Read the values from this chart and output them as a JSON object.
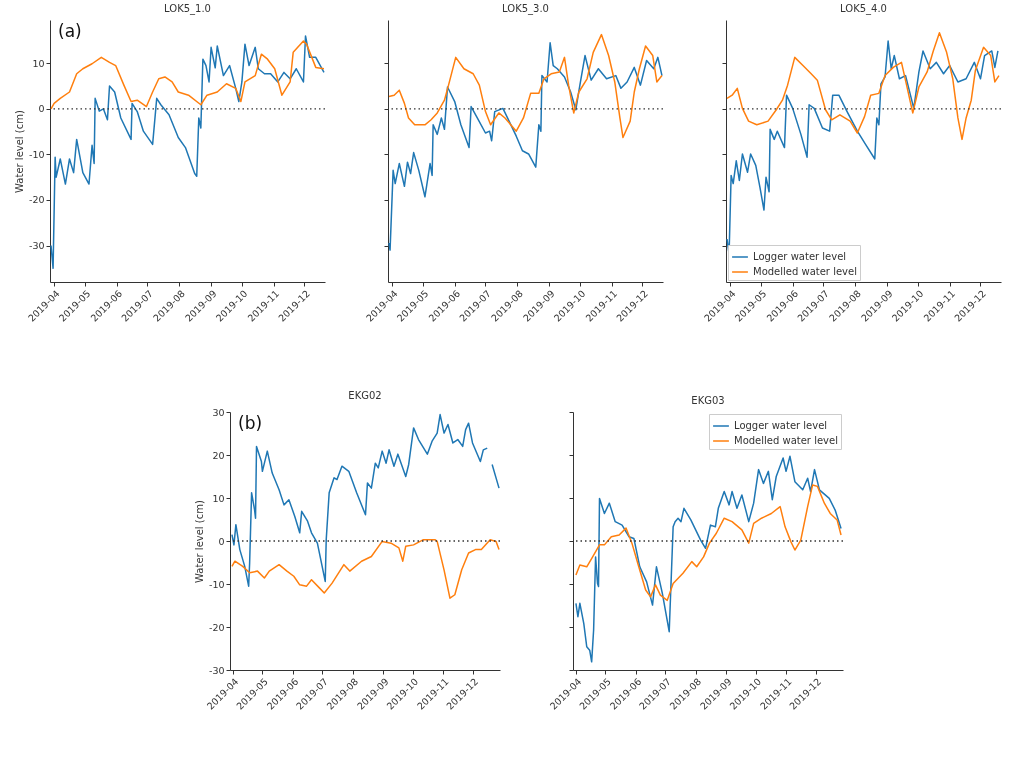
{
  "chart_data": [
    {
      "type": "line",
      "title": "LOK5_1.0",
      "ylabel": "Water level (cm)",
      "annotations": [
        "(a)"
      ],
      "legend": false,
      "xlim": [
        "2019-03-28",
        "2019-12-21"
      ],
      "xticks": [
        "2019-04",
        "2019-05",
        "2019-06",
        "2019-07",
        "2019-08",
        "2019-09",
        "2019-10",
        "2019-11",
        "2019-12"
      ],
      "ylim": [
        -38,
        19.5
      ],
      "yticks": [
        -30,
        -20,
        -10,
        0,
        10
      ],
      "ref_lines": [
        {
          "axis": "y",
          "value": 0,
          "line_style": "dotted",
          "color": "#333333"
        }
      ],
      "series": [
        {
          "color": "#1f77b4",
          "x": [
            "2019-03-29",
            "2019-03-31",
            "2019-04-02",
            "2019-04-03",
            "2019-04-07",
            "2019-04-12",
            "2019-04-16",
            "2019-04-20",
            "2019-04-23",
            "2019-04-29",
            "2019-05-05",
            "2019-05-08",
            "2019-05-10",
            "2019-05-11",
            "2019-05-15",
            "2019-05-19",
            "2019-05-23",
            "2019-05-25",
            "2019-05-30",
            "2019-06-05",
            "2019-06-15",
            "2019-06-16",
            "2019-06-21",
            "2019-06-27",
            "2019-07-06",
            "2019-07-10",
            "2019-07-14",
            "2019-07-22",
            "2019-07-31",
            "2019-08-07",
            "2019-08-16",
            "2019-08-18",
            "2019-08-20",
            "2019-08-22",
            "2019-08-24",
            "2019-08-27",
            "2019-08-30",
            "2019-09-01",
            "2019-09-05",
            "2019-09-07",
            "2019-09-13",
            "2019-09-19",
            "2019-09-25",
            "2019-09-28",
            "2019-10-01",
            "2019-10-04",
            "2019-10-08",
            "2019-10-14",
            "2019-10-17",
            "2019-10-23",
            "2019-10-29",
            "2019-11-05",
            "2019-11-11",
            "2019-11-17",
            "2019-11-23",
            "2019-11-30",
            "2019-12-02",
            "2019-12-06",
            "2019-12-12",
            "2019-12-20"
          ],
          "values": [
            -30,
            -35,
            -10.6,
            -15,
            -11,
            -16.5,
            -11,
            -14,
            -6.7,
            -14,
            -16.5,
            -8,
            -12,
            2.3,
            -0.5,
            0,
            -2.4,
            5,
            3.7,
            -2,
            -6.7,
            1.2,
            -0.6,
            -4.9,
            -7.8,
            2.3,
            0.9,
            -1.3,
            -6.3,
            -8.5,
            -14.2,
            -14.8,
            -2,
            -4.2,
            10.9,
            9.5,
            5.9,
            13.5,
            9,
            13.8,
            7.3,
            9.5,
            4.5,
            1.6,
            5.9,
            14.2,
            9.5,
            13.5,
            8.8,
            7.7,
            7.7,
            5.9,
            8,
            6.6,
            8.8,
            5.9,
            16,
            11.3,
            11.3,
            8
          ]
        },
        {
          "color": "#ff7f0e",
          "x": [
            "2019-03-29",
            "2019-04-01",
            "2019-04-07",
            "2019-04-16",
            "2019-04-23",
            "2019-04-29",
            "2019-05-08",
            "2019-05-17",
            "2019-05-25",
            "2019-05-31",
            "2019-06-08",
            "2019-06-15",
            "2019-06-21",
            "2019-06-30",
            "2019-07-06",
            "2019-07-12",
            "2019-07-18",
            "2019-07-25",
            "2019-07-31",
            "2019-08-10",
            "2019-08-22",
            "2019-08-28",
            "2019-09-07",
            "2019-09-16",
            "2019-09-25",
            "2019-09-30",
            "2019-10-04",
            "2019-10-14",
            "2019-10-20",
            "2019-10-26",
            "2019-11-02",
            "2019-11-09",
            "2019-11-17",
            "2019-11-20",
            "2019-11-30",
            "2019-12-03",
            "2019-12-12",
            "2019-12-20"
          ],
          "values": [
            0,
            1.2,
            2.3,
            3.7,
            7.7,
            8.8,
            9.9,
            11.3,
            10.2,
            9.5,
            5.2,
            1.6,
            1.9,
            0.5,
            3.7,
            6.6,
            7,
            5.9,
            3.7,
            3,
            0.9,
            3,
            3.7,
            5.5,
            4.5,
            1.6,
            5.9,
            7.3,
            12,
            10.9,
            8.8,
            3,
            5.9,
            12.4,
            14.9,
            14.2,
            9.1,
            8.8
          ]
        }
      ]
    },
    {
      "type": "line",
      "title": "LOK5_3.0",
      "tick_labels": "x",
      "legend": false,
      "xlim": [
        "2019-03-28",
        "2019-12-21"
      ],
      "xticks": [
        "2019-04",
        "2019-05",
        "2019-06",
        "2019-07",
        "2019-08",
        "2019-09",
        "2019-10",
        "2019-11",
        "2019-12"
      ],
      "ylim": [
        -38,
        19.5
      ],
      "yticks": [
        -30,
        -20,
        -10,
        0,
        10
      ],
      "ref_lines": [
        {
          "axis": "y",
          "value": 0,
          "line_style": "dotted",
          "color": "#333333"
        }
      ],
      "series": [
        {
          "color": "#1f77b4",
          "x": [
            "2019-03-29",
            "2019-03-30",
            "2019-04-02",
            "2019-04-04",
            "2019-04-08",
            "2019-04-13",
            "2019-04-16",
            "2019-04-19",
            "2019-04-22",
            "2019-04-27",
            "2019-05-03",
            "2019-05-08",
            "2019-05-10",
            "2019-05-11",
            "2019-05-15",
            "2019-05-19",
            "2019-05-22",
            "2019-05-25",
            "2019-06-01",
            "2019-06-07",
            "2019-06-15",
            "2019-06-17",
            "2019-06-23",
            "2019-07-01",
            "2019-07-05",
            "2019-07-07",
            "2019-07-10",
            "2019-07-18",
            "2019-07-24",
            "2019-07-31",
            "2019-08-06",
            "2019-08-12",
            "2019-08-19",
            "2019-08-22",
            "2019-08-24",
            "2019-08-25",
            "2019-08-30",
            "2019-09-02",
            "2019-09-05",
            "2019-09-09",
            "2019-09-16",
            "2019-09-22",
            "2019-09-27",
            "2019-10-01",
            "2019-10-06",
            "2019-10-12",
            "2019-10-19",
            "2019-10-27",
            "2019-11-05",
            "2019-11-10",
            "2019-11-16",
            "2019-11-23",
            "2019-11-29",
            "2019-12-05",
            "2019-12-12",
            "2019-12-16",
            "2019-12-20"
          ],
          "values": [
            -29.4,
            -31,
            -13.5,
            -16.4,
            -12,
            -17,
            -11.7,
            -14.2,
            -9.6,
            -13.5,
            -19.3,
            -12,
            -14.6,
            -3.5,
            -5.6,
            -2,
            -4.5,
            4.8,
            1.6,
            -3.5,
            -8.5,
            0.5,
            -2,
            -5.3,
            -4.9,
            -7,
            -0.6,
            0.1,
            -2.7,
            -6,
            -9.2,
            -9.9,
            -12.8,
            -3.5,
            -4.9,
            7.3,
            5.9,
            14.5,
            9.5,
            8.8,
            7,
            3.7,
            -0.2,
            5.2,
            11.7,
            6.3,
            8.8,
            6.6,
            7.3,
            4.5,
            5.9,
            9.1,
            5.2,
            10.6,
            8.8,
            11.3,
            7.3
          ]
        },
        {
          "color": "#ff7f0e",
          "x": [
            "2019-03-29",
            "2019-04-03",
            "2019-04-08",
            "2019-04-13",
            "2019-04-17",
            "2019-04-23",
            "2019-05-03",
            "2019-05-09",
            "2019-05-15",
            "2019-05-22",
            "2019-05-26",
            "2019-06-02",
            "2019-06-10",
            "2019-06-19",
            "2019-06-25",
            "2019-07-01",
            "2019-07-06",
            "2019-07-14",
            "2019-07-20",
            "2019-07-31",
            "2019-08-07",
            "2019-08-14",
            "2019-08-22",
            "2019-08-27",
            "2019-09-03",
            "2019-09-11",
            "2019-09-16",
            "2019-09-20",
            "2019-09-25",
            "2019-09-30",
            "2019-10-08",
            "2019-10-14",
            "2019-10-22",
            "2019-10-29",
            "2019-11-04",
            "2019-11-09",
            "2019-11-12",
            "2019-11-19",
            "2019-11-23",
            "2019-11-28",
            "2019-12-04",
            "2019-12-11",
            "2019-12-15",
            "2019-12-20"
          ],
          "values": [
            2.7,
            3,
            4.1,
            1.2,
            -2,
            -3.5,
            -3.5,
            -2.4,
            -0.9,
            1.9,
            5.2,
            11.3,
            8.8,
            7.7,
            5.2,
            -0.6,
            -3.5,
            -0.9,
            -2,
            -4.9,
            -2,
            3.4,
            3.4,
            6.6,
            7.7,
            8.1,
            11.3,
            5.2,
            -0.9,
            3.7,
            6.6,
            12.4,
            16.3,
            11.7,
            5.9,
            -2,
            -6.3,
            -2.7,
            3.7,
            8.8,
            13.8,
            11.7,
            5.9,
            7.3
          ]
        }
      ]
    },
    {
      "type": "line",
      "title": "LOK5_4.0",
      "tick_labels": "x",
      "legend": "bottom left",
      "xlim": [
        "2019-03-28",
        "2019-12-21"
      ],
      "xticks": [
        "2019-04",
        "2019-05",
        "2019-06",
        "2019-07",
        "2019-08",
        "2019-09",
        "2019-10",
        "2019-11",
        "2019-12"
      ],
      "ylim": [
        -38,
        19.5
      ],
      "yticks": [
        -30,
        -20,
        -10,
        0,
        10
      ],
      "ref_lines": [
        {
          "axis": "y",
          "value": 0,
          "line_style": "dotted",
          "color": "#333333"
        }
      ],
      "series": [
        {
          "name": "Logger water level",
          "color": "#1f77b4",
          "x": [
            "2019-03-29",
            "2019-03-31",
            "2019-04-02",
            "2019-04-04",
            "2019-04-07",
            "2019-04-10",
            "2019-04-13",
            "2019-04-18",
            "2019-04-21",
            "2019-04-26",
            "2019-04-30",
            "2019-05-04",
            "2019-05-06",
            "2019-05-09",
            "2019-05-10",
            "2019-05-14",
            "2019-05-17",
            "2019-05-24",
            "2019-05-26",
            "2019-06-01",
            "2019-06-09",
            "2019-06-15",
            "2019-06-17",
            "2019-06-22",
            "2019-06-30",
            "2019-07-07",
            "2019-07-10",
            "2019-07-16",
            "2019-07-24",
            "2019-08-03",
            "2019-08-11",
            "2019-08-20",
            "2019-08-22",
            "2019-08-24",
            "2019-08-26",
            "2019-08-30",
            "2019-09-02",
            "2019-09-05",
            "2019-09-08",
            "2019-09-13",
            "2019-09-19",
            "2019-09-27",
            "2019-10-02",
            "2019-10-06",
            "2019-10-13",
            "2019-10-19",
            "2019-10-26",
            "2019-11-01",
            "2019-11-09",
            "2019-11-17",
            "2019-11-25",
            "2019-12-01",
            "2019-12-05",
            "2019-12-12",
            "2019-12-15",
            "2019-12-18"
          ],
          "values": [
            -28.6,
            -31.9,
            -14.6,
            -16.4,
            -11.4,
            -15.7,
            -9.9,
            -13.9,
            -9.9,
            -12.4,
            -17.1,
            -22.2,
            -15,
            -18.2,
            -4.5,
            -6.7,
            -4.9,
            -8.5,
            3,
            0.1,
            -5.6,
            -10.6,
            0.9,
            0.1,
            -4.2,
            -4.9,
            3,
            3,
            -0.6,
            -4.9,
            -7.8,
            -11,
            -2,
            -3.5,
            5.5,
            7,
            14.9,
            8.8,
            11.7,
            6.6,
            7.3,
            0.1,
            8.1,
            12.7,
            8.8,
            10.2,
            7.7,
            9.5,
            5.9,
            6.6,
            10.2,
            6.6,
            11.7,
            12.7,
            9.1,
            12.7
          ]
        },
        {
          "name": "Modelled water level",
          "color": "#ff7f0e",
          "x": [
            "2019-03-29",
            "2019-04-03",
            "2019-04-08",
            "2019-04-13",
            "2019-04-19",
            "2019-04-27",
            "2019-05-08",
            "2019-05-16",
            "2019-05-22",
            "2019-05-27",
            "2019-06-03",
            "2019-06-11",
            "2019-06-19",
            "2019-06-25",
            "2019-07-03",
            "2019-07-09",
            "2019-07-17",
            "2019-07-27",
            "2019-08-03",
            "2019-08-10",
            "2019-08-16",
            "2019-08-24",
            "2019-08-30",
            "2019-09-07",
            "2019-09-15",
            "2019-09-20",
            "2019-09-26",
            "2019-10-02",
            "2019-10-10",
            "2019-10-16",
            "2019-10-22",
            "2019-10-29",
            "2019-11-04",
            "2019-11-09",
            "2019-11-13",
            "2019-11-17",
            "2019-11-22",
            "2019-11-26",
            "2019-12-04",
            "2019-12-11",
            "2019-12-15",
            "2019-12-19"
          ],
          "values": [
            2.3,
            3,
            4.5,
            0.1,
            -2.7,
            -3.5,
            -2.7,
            -0.2,
            1.9,
            5.2,
            11.3,
            9.5,
            7.7,
            6.3,
            -0.2,
            -2.4,
            -1.3,
            -2.7,
            -5.3,
            -1.7,
            3,
            3.4,
            7.3,
            9.1,
            10.2,
            5.2,
            -0.9,
            4.8,
            8.1,
            12.7,
            16.7,
            12.4,
            6.6,
            -2,
            -6.7,
            -2,
            1.9,
            8.4,
            13.5,
            11.7,
            5.9,
            7.3
          ]
        }
      ]
    },
    {
      "type": "line",
      "title": "EKG02",
      "ylabel": "Water level (cm)",
      "annotations": [
        "(b)"
      ],
      "legend": false,
      "xlim": [
        "2019-03-29",
        "2019-12-29"
      ],
      "xticks": [
        "2019-04",
        "2019-05",
        "2019-06",
        "2019-07",
        "2019-08",
        "2019-09",
        "2019-10",
        "2019-11",
        "2019-12"
      ],
      "ylim": [
        -30,
        30
      ],
      "yticks": [
        -30,
        -20,
        -10,
        0,
        10,
        20,
        30
      ],
      "ref_lines": [
        {
          "axis": "y",
          "value": 0,
          "line_style": "dotted",
          "color": "#333333"
        }
      ],
      "series": [
        {
          "color": "#1f77b4",
          "x": [
            "2019-03-31",
            "2019-04-02",
            "2019-04-04",
            "2019-04-08",
            "2019-04-13",
            "2019-04-17",
            "2019-04-18",
            "2019-04-20",
            "2019-04-23",
            "2019-04-24",
            "2019-04-25",
            "2019-04-30",
            "2019-05-01",
            "2019-05-06",
            "2019-05-11",
            "2019-05-18",
            "2019-05-23",
            "2019-05-28",
            "2019-06-03",
            "2019-06-08",
            "2019-06-10",
            "2019-06-16",
            "2019-06-20",
            "2019-06-26",
            "2019-07-04",
            "2019-07-05",
            "2019-07-08",
            "2019-07-13",
            "2019-07-16",
            "2019-07-21",
            "2019-07-28",
            "2019-08-05",
            "2019-08-14",
            "2019-08-16",
            "2019-08-20",
            "2019-08-24",
            "2019-08-27",
            "2019-08-31",
            "2019-09-04",
            "2019-09-07",
            "2019-09-12",
            "2019-09-16",
            "2019-09-24",
            "2019-09-27",
            "2019-10-02",
            "2019-10-07",
            "2019-10-16",
            "2019-10-21",
            "2019-10-26",
            "2019-10-29",
            "2019-11-02",
            "2019-11-06",
            "2019-11-11",
            "2019-11-16",
            "2019-11-21",
            "2019-11-24",
            "2019-11-27",
            "2019-12-01",
            "2019-12-09",
            "2019-12-12",
            "2019-12-16",
            "2019-12-18",
            "2019-12-21",
            "2019-12-28"
          ],
          "values": [
            1.5,
            -0.9,
            3.8,
            -2,
            -5.9,
            -10.5,
            -5.1,
            11.2,
            7.3,
            5.3,
            22,
            18.5,
            16.2,
            20.9,
            15.8,
            11.9,
            8.4,
            9.6,
            5.7,
            1.9,
            6.9,
            4.6,
            1.9,
            -0.5,
            -9.4,
            0.3,
            11.2,
            14.7,
            14.3,
            17.4,
            16.2,
            11.2,
            6.1,
            13.5,
            12.3,
            18.1,
            17,
            20.9,
            18.1,
            21.2,
            17.4,
            20.2,
            15,
            17.8,
            26.3,
            23.6,
            20.2,
            23.3,
            25.1,
            29.4,
            25.1,
            27.1,
            22.8,
            23.6,
            22,
            25.9,
            27.4,
            22.8,
            18.5,
            21.2,
            21.6,
            null,
            17.8,
            12.3
          ]
        },
        {
          "color": "#ff7f0e",
          "x": [
            "2019-03-31",
            "2019-04-03",
            "2019-04-11",
            "2019-04-18",
            "2019-04-26",
            "2019-05-03",
            "2019-05-08",
            "2019-05-18",
            "2019-05-26",
            "2019-06-02",
            "2019-06-08",
            "2019-06-15",
            "2019-06-20",
            "2019-06-28",
            "2019-07-03",
            "2019-07-11",
            "2019-07-23",
            "2019-07-29",
            "2019-08-10",
            "2019-08-20",
            "2019-08-31",
            "2019-09-09",
            "2019-09-17",
            "2019-09-21",
            "2019-09-24",
            "2019-10-02",
            "2019-10-12",
            "2019-10-24",
            "2019-10-26",
            "2019-11-02",
            "2019-11-08",
            "2019-11-13",
            "2019-11-20",
            "2019-11-27",
            "2019-12-04",
            "2019-12-10",
            "2019-12-19",
            "2019-12-25",
            "2019-12-28"
          ],
          "values": [
            -5.9,
            -4.7,
            -5.9,
            -7.4,
            -7,
            -8.6,
            -7,
            -5.5,
            -7,
            -8.2,
            -10.2,
            -10.5,
            -9,
            -10.9,
            -12.1,
            -9.8,
            -5.5,
            -7,
            -4.7,
            -3.6,
            -0.1,
            -0.5,
            -1.6,
            -4.7,
            -1.2,
            -0.9,
            0.3,
            0.3,
            -0.1,
            -6.7,
            -13.3,
            -12.5,
            -6.7,
            -2.8,
            -2,
            -2,
            0.3,
            -0.1,
            -2
          ]
        }
      ]
    },
    {
      "type": "line",
      "title": "EKG03",
      "tick_labels": "x",
      "legend": "top right",
      "xlim": [
        "2019-03-29",
        "2019-12-29"
      ],
      "xticks": [
        "2019-04",
        "2019-05",
        "2019-06",
        "2019-07",
        "2019-08",
        "2019-09",
        "2019-10",
        "2019-11",
        "2019-12"
      ],
      "ylim": [
        -30,
        30
      ],
      "yticks": [
        -30,
        -20,
        -10,
        0,
        10,
        20,
        30
      ],
      "ref_lines": [
        {
          "axis": "y",
          "value": 0,
          "line_style": "dotted",
          "color": "#333333"
        }
      ],
      "series": [
        {
          "name": "Logger water level",
          "color": "#1f77b4",
          "x": [
            "2019-04-01",
            "2019-04-03",
            "2019-04-05",
            "2019-04-09",
            "2019-04-12",
            "2019-04-15",
            "2019-04-17",
            "2019-04-19",
            "2019-04-21",
            "2019-04-23",
            "2019-04-24",
            "2019-04-25",
            "2019-04-30",
            "2019-05-05",
            "2019-05-11",
            "2019-05-18",
            "2019-05-25",
            "2019-05-30",
            "2019-06-05",
            "2019-06-12",
            "2019-06-18",
            "2019-06-22",
            "2019-06-28",
            "2019-07-05",
            "2019-07-09",
            "2019-07-11",
            "2019-07-14",
            "2019-07-17",
            "2019-07-20",
            "2019-07-27",
            "2019-08-06",
            "2019-08-11",
            "2019-08-16",
            "2019-08-21",
            "2019-08-24",
            "2019-08-30",
            "2019-09-04",
            "2019-09-07",
            "2019-09-12",
            "2019-09-17",
            "2019-09-24",
            "2019-09-29",
            "2019-10-04",
            "2019-10-09",
            "2019-10-14",
            "2019-10-18",
            "2019-10-22",
            "2019-10-29",
            "2019-11-01",
            "2019-11-05",
            "2019-11-10",
            "2019-11-18",
            "2019-11-23",
            "2019-11-26",
            "2019-11-30",
            "2019-12-05",
            "2019-12-15",
            "2019-12-21",
            "2019-12-27"
          ],
          "values": [
            -14.5,
            -17.6,
            -14.5,
            -19.2,
            -24.6,
            -25.4,
            -28.1,
            -20.7,
            -3.7,
            -9.9,
            -10.6,
            9.9,
            6.4,
            8.8,
            4.5,
            3.7,
            1,
            0.6,
            -6,
            -9.5,
            -14.9,
            -6,
            -12.2,
            -21.1,
            3.3,
            4.5,
            5.3,
            4.5,
            7.6,
            4.9,
            0.2,
            -1.7,
            3.7,
            3.3,
            7.6,
            11.5,
            8.4,
            11.5,
            7.6,
            10.7,
            4.5,
            8.8,
            16.6,
            13.4,
            16.2,
            9.6,
            15,
            19.3,
            16.2,
            19.7,
            13.8,
            11.9,
            14.6,
            11.5,
            16.6,
            11.9,
            9.9,
            7.2,
            2.9
          ]
        },
        {
          "name": "Modelled water level",
          "color": "#ff7f0e",
          "x": [
            "2019-04-01",
            "2019-04-05",
            "2019-04-12",
            "2019-04-18",
            "2019-04-25",
            "2019-04-30",
            "2019-05-07",
            "2019-05-15",
            "2019-05-22",
            "2019-05-28",
            "2019-06-04",
            "2019-06-11",
            "2019-06-16",
            "2019-06-21",
            "2019-06-26",
            "2019-07-03",
            "2019-07-09",
            "2019-07-19",
            "2019-07-28",
            "2019-08-02",
            "2019-08-09",
            "2019-08-15",
            "2019-08-22",
            "2019-08-30",
            "2019-09-07",
            "2019-09-17",
            "2019-09-24",
            "2019-09-29",
            "2019-10-07",
            "2019-10-17",
            "2019-10-26",
            "2019-10-31",
            "2019-11-06",
            "2019-11-10",
            "2019-11-16",
            "2019-11-23",
            "2019-11-28",
            "2019-12-03",
            "2019-12-10",
            "2019-12-16",
            "2019-12-23",
            "2019-12-27"
          ],
          "values": [
            -7.9,
            -5.6,
            -6,
            -3.7,
            -0.9,
            -0.9,
            1,
            1.4,
            3,
            -0.5,
            -6,
            -11.4,
            -13,
            -10.2,
            -12.6,
            -13.8,
            -9.9,
            -7.5,
            -4.8,
            -6,
            -3.7,
            -0.5,
            1.8,
            5.3,
            4.5,
            2.6,
            -0.5,
            4.1,
            5.3,
            6.4,
            8,
            3.3,
            -0.2,
            -2.1,
            0.2,
            8,
            13,
            12.7,
            8.8,
            6.4,
            4.9,
            1.4
          ]
        }
      ]
    }
  ]
}
